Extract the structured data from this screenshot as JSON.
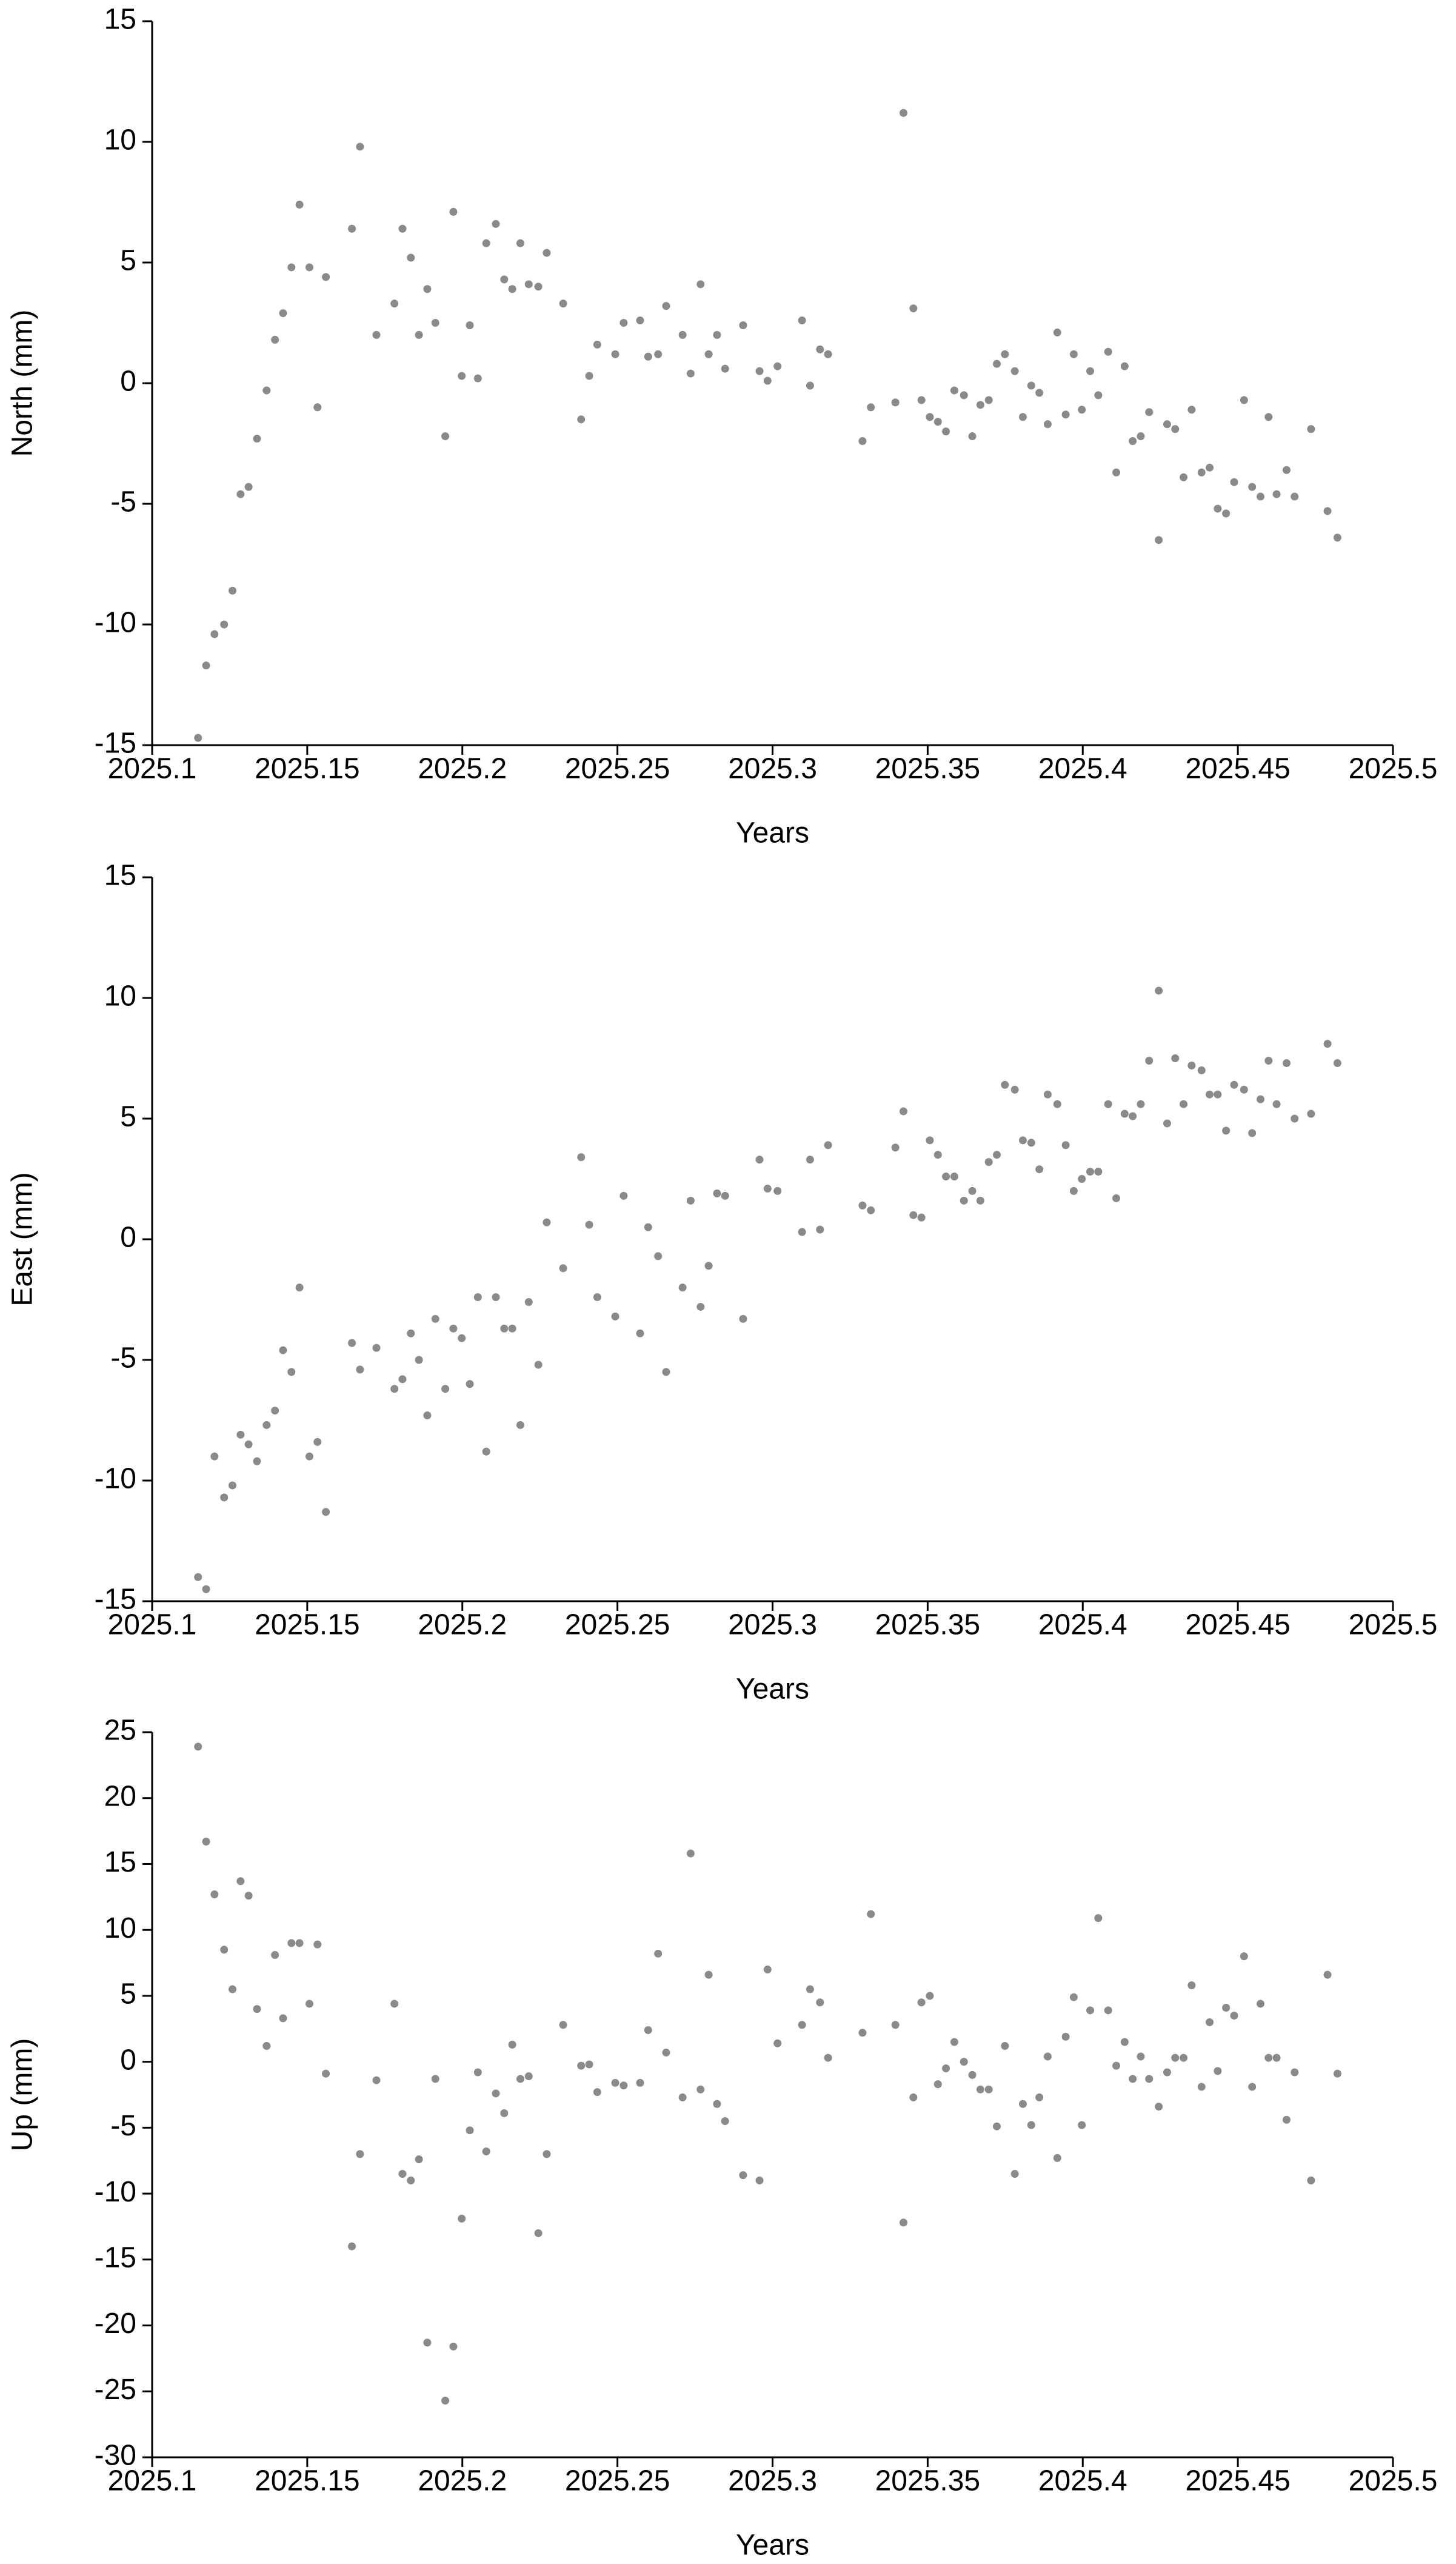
{
  "chart_data": [
    {
      "type": "scatter",
      "y_label": "North (mm)",
      "x_label": "Years",
      "color": "#8a8a8a",
      "xlim": [
        2025.1,
        2025.5
      ],
      "xticks": [
        2025.1,
        2025.15,
        2025.2,
        2025.25,
        2025.3,
        2025.35,
        2025.4,
        2025.45,
        2025.5
      ],
      "ylim": [
        -15,
        15
      ],
      "yticks": [
        -15,
        -10,
        -5,
        0,
        5,
        10,
        15
      ],
      "x": [
        2025.1148,
        2025.1174,
        2025.1201,
        2025.1232,
        2025.1259,
        2025.1285,
        2025.1311,
        2025.1338,
        2025.1369,
        2025.1396,
        2025.1422,
        2025.1449,
        2025.1475,
        2025.1507,
        2025.1533,
        2025.156,
        2025.1644,
        2025.167,
        2025.1723,
        2025.1781,
        2025.1807,
        2025.1834,
        2025.186,
        2025.1887,
        2025.1913,
        2025.1945,
        2025.1971,
        2025.1998,
        2025.2024,
        2025.205,
        2025.2077,
        2025.2108,
        2025.2135,
        2025.2161,
        2025.2187,
        2025.2214,
        2025.2245,
        2025.2272,
        2025.2325,
        2025.2383,
        2025.2409,
        2025.2435,
        2025.2493,
        2025.252,
        2025.2573,
        2025.2599,
        2025.2631,
        2025.2657,
        2025.271,
        2025.2736,
        2025.2768,
        2025.2794,
        2025.2821,
        2025.2847,
        2025.2905,
        2025.2958,
        2025.2984,
        2025.3016,
        2025.3095,
        2025.3121,
        2025.3153,
        2025.3179,
        2025.329,
        2025.3317,
        2025.3396,
        2025.3422,
        2025.3454,
        2025.348,
        2025.3507,
        2025.3533,
        2025.3559,
        2025.3586,
        2025.3617,
        2025.3644,
        2025.367,
        2025.3697,
        2025.3723,
        2025.3749,
        2025.3781,
        2025.3807,
        2025.3834,
        2025.386,
        2025.3887,
        2025.3918,
        2025.3945,
        2025.3971,
        2025.3997,
        2025.4024,
        2025.405,
        2025.4082,
        2025.4108,
        2025.4135,
        2025.4161,
        2025.4187,
        2025.4214,
        2025.4245,
        2025.4272,
        2025.4298,
        2025.4325,
        2025.4351,
        2025.4383,
        2025.4409,
        2025.4435,
        2025.4462,
        2025.4488,
        2025.452,
        2025.4546,
        2025.4573,
        2025.4599,
        2025.4625,
        2025.4657,
        2025.4683,
        2025.4736,
        2025.4789,
        2025.4821
      ],
      "values": [
        -14.7,
        -11.7,
        -10.4,
        -10,
        -8.6,
        -4.6,
        -4.3,
        -2.3,
        -0.3,
        1.8,
        2.9,
        4.8,
        7.4,
        4.8,
        -1,
        4.4,
        6.4,
        9.8,
        2,
        3.3,
        6.4,
        5.2,
        2,
        3.9,
        2.5,
        -2.2,
        7.1,
        0.3,
        2.4,
        0.2,
        5.8,
        6.6,
        4.3,
        3.9,
        5.8,
        4.1,
        4,
        5.4,
        3.3,
        -1.5,
        0.3,
        1.6,
        1.2,
        2.5,
        2.6,
        1.1,
        1.2,
        3.2,
        2,
        0.4,
        4.1,
        1.2,
        2,
        0.6,
        2.4,
        0.5,
        0.1,
        0.7,
        2.6,
        -0.1,
        1.4,
        1.2,
        -2.4,
        -1,
        -0.8,
        11.2,
        3.1,
        -0.7,
        -1.4,
        -1.6,
        -2,
        -0.3,
        -0.5,
        -2.2,
        -0.9,
        -0.7,
        0.8,
        1.2,
        0.5,
        -1.4,
        -0.1,
        -0.4,
        -1.7,
        2.1,
        -1.3,
        1.2,
        -1.1,
        0.5,
        -0.5,
        1.3,
        -3.7,
        0.7,
        -2.4,
        -2.2,
        -1.2,
        -6.5,
        -1.7,
        -1.9,
        -3.9,
        -1.1,
        -3.7,
        -3.5,
        -5.2,
        -5.4,
        -4.1,
        -0.7,
        -4.3,
        -4.7,
        -1.4,
        -4.6,
        -3.6,
        -4.7,
        -1.9,
        -5.3,
        -6.4
      ]
    },
    {
      "type": "scatter",
      "y_label": "East (mm)",
      "x_label": "Years",
      "color": "#8a8a8a",
      "xlim": [
        2025.1,
        2025.5
      ],
      "xticks": [
        2025.1,
        2025.15,
        2025.2,
        2025.25,
        2025.3,
        2025.35,
        2025.4,
        2025.45,
        2025.5
      ],
      "ylim": [
        -15,
        15
      ],
      "yticks": [
        -15,
        -10,
        -5,
        0,
        5,
        10,
        15
      ],
      "x": [
        2025.1148,
        2025.1174,
        2025.1201,
        2025.1232,
        2025.1259,
        2025.1285,
        2025.1311,
        2025.1338,
        2025.1369,
        2025.1396,
        2025.1422,
        2025.1449,
        2025.1475,
        2025.1507,
        2025.1533,
        2025.156,
        2025.1644,
        2025.167,
        2025.1723,
        2025.1781,
        2025.1807,
        2025.1834,
        2025.186,
        2025.1887,
        2025.1913,
        2025.1945,
        2025.1971,
        2025.1998,
        2025.2024,
        2025.205,
        2025.2077,
        2025.2108,
        2025.2135,
        2025.2161,
        2025.2187,
        2025.2214,
        2025.2245,
        2025.2272,
        2025.2325,
        2025.2383,
        2025.2409,
        2025.2435,
        2025.2493,
        2025.252,
        2025.2573,
        2025.2599,
        2025.2631,
        2025.2657,
        2025.271,
        2025.2736,
        2025.2768,
        2025.2794,
        2025.2821,
        2025.2847,
        2025.2905,
        2025.2958,
        2025.2984,
        2025.3016,
        2025.3095,
        2025.3121,
        2025.3153,
        2025.3179,
        2025.329,
        2025.3317,
        2025.3396,
        2025.3422,
        2025.3454,
        2025.348,
        2025.3507,
        2025.3533,
        2025.3559,
        2025.3586,
        2025.3617,
        2025.3644,
        2025.367,
        2025.3697,
        2025.3723,
        2025.3749,
        2025.3781,
        2025.3807,
        2025.3834,
        2025.386,
        2025.3887,
        2025.3918,
        2025.3945,
        2025.3971,
        2025.3997,
        2025.4024,
        2025.405,
        2025.4082,
        2025.4108,
        2025.4135,
        2025.4161,
        2025.4187,
        2025.4214,
        2025.4245,
        2025.4272,
        2025.4298,
        2025.4325,
        2025.4351,
        2025.4383,
        2025.4409,
        2025.4435,
        2025.4462,
        2025.4488,
        2025.452,
        2025.4546,
        2025.4573,
        2025.4599,
        2025.4625,
        2025.4657,
        2025.4683,
        2025.4736,
        2025.4789,
        2025.4821
      ],
      "values": [
        -14,
        -14.5,
        -9,
        -10.7,
        -10.2,
        -8.1,
        -8.5,
        -9.2,
        -7.7,
        -7.1,
        -4.6,
        -5.5,
        -2,
        -9,
        -8.4,
        -11.3,
        -4.3,
        -5.4,
        -4.5,
        -6.2,
        -5.8,
        -3.9,
        -5,
        -7.3,
        -3.3,
        -6.2,
        -3.7,
        -4.1,
        -6,
        -2.4,
        -8.8,
        -2.4,
        -3.7,
        -3.7,
        -7.7,
        -2.6,
        -5.2,
        0.7,
        -1.2,
        3.4,
        0.6,
        -2.4,
        -3.2,
        1.8,
        -3.9,
        0.5,
        -0.7,
        -5.5,
        -2,
        1.6,
        -2.8,
        -1.1,
        1.9,
        1.8,
        -3.3,
        3.3,
        2.1,
        2,
        0.3,
        3.3,
        0.4,
        3.9,
        1.4,
        1.2,
        3.8,
        5.3,
        1,
        0.9,
        4.1,
        3.5,
        2.6,
        2.6,
        1.6,
        2,
        1.6,
        3.2,
        3.5,
        6.4,
        6.2,
        4.1,
        4,
        2.9,
        6,
        5.6,
        3.9,
        2,
        2.5,
        2.8,
        2.8,
        5.6,
        1.7,
        5.2,
        5.1,
        5.6,
        7.4,
        10.3,
        4.8,
        7.5,
        5.6,
        7.2,
        7,
        6,
        6,
        4.5,
        6.4,
        6.2,
        4.4,
        5.8,
        7.4,
        5.6,
        7.3,
        5,
        5.2,
        8.1,
        7.3
      ]
    },
    {
      "type": "scatter",
      "y_label": "Up (mm)",
      "x_label": "Years",
      "color": "#8a8a8a",
      "xlim": [
        2025.1,
        2025.5
      ],
      "xticks": [
        2025.1,
        2025.15,
        2025.2,
        2025.25,
        2025.3,
        2025.35,
        2025.4,
        2025.45,
        2025.5
      ],
      "ylim": [
        -30,
        25
      ],
      "yticks": [
        -30,
        -25,
        -20,
        -15,
        -10,
        -5,
        0,
        5,
        10,
        15,
        20,
        25
      ],
      "x": [
        2025.1148,
        2025.1174,
        2025.1201,
        2025.1232,
        2025.1259,
        2025.1285,
        2025.1311,
        2025.1338,
        2025.1369,
        2025.1396,
        2025.1422,
        2025.1449,
        2025.1475,
        2025.1507,
        2025.1533,
        2025.156,
        2025.1644,
        2025.167,
        2025.1723,
        2025.1781,
        2025.1807,
        2025.1834,
        2025.186,
        2025.1887,
        2025.1913,
        2025.1945,
        2025.1971,
        2025.1998,
        2025.2024,
        2025.205,
        2025.2077,
        2025.2108,
        2025.2135,
        2025.2161,
        2025.2187,
        2025.2214,
        2025.2245,
        2025.2272,
        2025.2325,
        2025.2383,
        2025.2409,
        2025.2435,
        2025.2493,
        2025.252,
        2025.2573,
        2025.2599,
        2025.2631,
        2025.2657,
        2025.271,
        2025.2736,
        2025.2768,
        2025.2794,
        2025.2821,
        2025.2847,
        2025.2905,
        2025.2958,
        2025.2984,
        2025.3016,
        2025.3095,
        2025.3121,
        2025.3153,
        2025.3179,
        2025.329,
        2025.3317,
        2025.3396,
        2025.3422,
        2025.3454,
        2025.348,
        2025.3507,
        2025.3533,
        2025.3559,
        2025.3586,
        2025.3617,
        2025.3644,
        2025.367,
        2025.3697,
        2025.3723,
        2025.3749,
        2025.3781,
        2025.3807,
        2025.3834,
        2025.386,
        2025.3887,
        2025.3918,
        2025.3945,
        2025.3971,
        2025.3997,
        2025.4024,
        2025.405,
        2025.4082,
        2025.4108,
        2025.4135,
        2025.4161,
        2025.4187,
        2025.4214,
        2025.4245,
        2025.4272,
        2025.4298,
        2025.4325,
        2025.4351,
        2025.4383,
        2025.4409,
        2025.4435,
        2025.4462,
        2025.4488,
        2025.452,
        2025.4546,
        2025.4573,
        2025.4599,
        2025.4625,
        2025.4657,
        2025.4683,
        2025.4736,
        2025.4789,
        2025.4821
      ],
      "values": [
        23.9,
        16.7,
        12.7,
        8.5,
        5.5,
        13.7,
        12.6,
        4,
        1.2,
        8.1,
        3.3,
        9,
        9,
        4.4,
        8.9,
        -0.9,
        -14,
        -7,
        -1.4,
        4.4,
        -8.5,
        -9,
        -7.4,
        -21.3,
        -1.3,
        -25.7,
        -21.6,
        -11.9,
        -5.2,
        -0.8,
        -6.8,
        -2.4,
        -3.9,
        1.3,
        -1.3,
        -1.1,
        -13,
        -7,
        2.8,
        -0.3,
        -0.2,
        -2.3,
        -1.6,
        -1.8,
        -1.6,
        2.4,
        8.2,
        0.7,
        -2.7,
        15.8,
        -2.1,
        6.6,
        -3.2,
        -4.5,
        -8.6,
        -9,
        7,
        1.4,
        2.8,
        5.5,
        4.5,
        0.3,
        2.2,
        11.2,
        2.8,
        -12.2,
        -2.7,
        4.5,
        5,
        -1.7,
        -0.5,
        1.5,
        0,
        -1,
        -2.1,
        -2.1,
        -4.9,
        1.2,
        -8.5,
        -3.2,
        -4.8,
        -2.7,
        0.4,
        -7.3,
        1.9,
        4.9,
        -4.8,
        3.9,
        10.9,
        3.9,
        -0.3,
        1.5,
        -1.3,
        0.4,
        -1.3,
        -3.4,
        -0.8,
        0.3,
        0.3,
        5.8,
        -1.9,
        3,
        -0.7,
        4.1,
        3.5,
        8,
        -1.9,
        4.4,
        0.3,
        0.3,
        -4.4,
        -0.8,
        -9,
        6.6,
        -0.9
      ]
    }
  ]
}
